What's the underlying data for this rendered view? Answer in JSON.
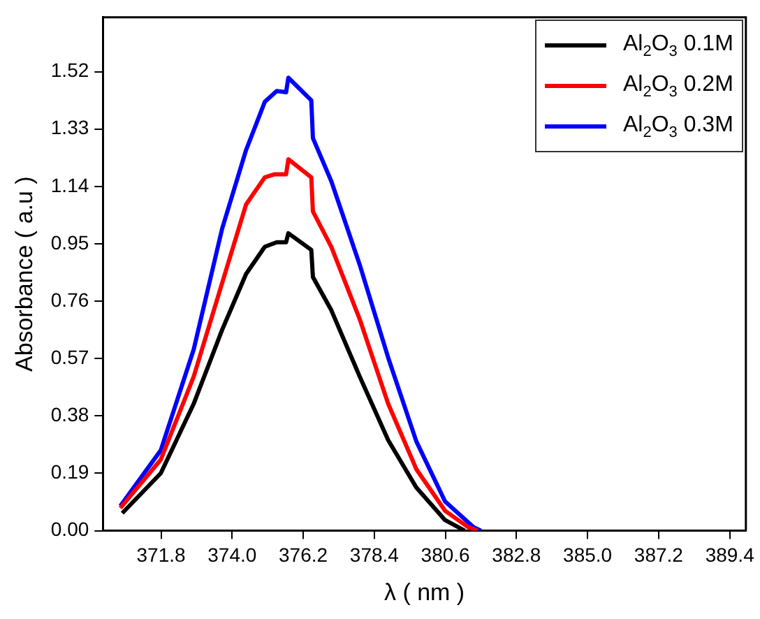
{
  "chart_data": {
    "type": "line",
    "xlabel": "λ ( nm )",
    "ylabel": "Absorbance ( a.u )",
    "xlim": [
      370,
      389.9
    ],
    "ylim": [
      0,
      1.7
    ],
    "xticks": [
      371.8,
      {
        "value": 374,
        "label": "374.0"
      },
      376.2,
      378.4,
      380.6,
      382.8,
      {
        "value": 385,
        "label": "385.0"
      },
      387.2,
      389.4
    ],
    "yticks": [
      {
        "value": 0,
        "label": "0.00"
      },
      0.19,
      0.38,
      0.57,
      0.76,
      0.95,
      1.14,
      1.33,
      1.52
    ],
    "grid": false,
    "legend": "top right",
    "marker": "none",
    "line_style": "solid",
    "series": [
      {
        "name": "Al$_{2}$O$_{3}$ 0.1M",
        "color": "#000000",
        "x": [
          370.6,
          371.79,
          372.81,
          373.69,
          374.43,
          375.01,
          375.38,
          375.67,
          375.74,
          376.45,
          376.5,
          377.07,
          377.95,
          378.83,
          379.7,
          380.59,
          381.2
        ],
        "values": [
          0.058,
          0.19,
          0.42,
          0.665,
          0.85,
          0.94,
          0.955,
          0.955,
          0.985,
          0.93,
          0.84,
          0.73,
          0.51,
          0.3,
          0.143,
          0.035,
          0
        ]
      },
      {
        "name": "Al$_{2}$O$_{3}$ 0.2M",
        "color": "#ff0000",
        "x": [
          370.54,
          371.79,
          372.81,
          373.69,
          374.43,
          375.01,
          375.3,
          375.67,
          375.74,
          376.45,
          376.5,
          377.07,
          377.95,
          378.83,
          379.7,
          380.59,
          381.3,
          381.6
        ],
        "values": [
          0.075,
          0.235,
          0.51,
          0.82,
          1.08,
          1.17,
          1.18,
          1.18,
          1.23,
          1.17,
          1.057,
          0.94,
          0.7,
          0.42,
          0.204,
          0.066,
          0.012,
          0
        ]
      },
      {
        "name": "Al$_{2}$O$_{3}$ 0.3M",
        "color": "#0000ff",
        "x": [
          370.54,
          371.79,
          372.81,
          373.69,
          374.43,
          375.01,
          375.38,
          375.67,
          375.74,
          376.45,
          376.5,
          377.07,
          377.95,
          378.83,
          379.7,
          380.59,
          381.47,
          381.7
        ],
        "values": [
          0.082,
          0.266,
          0.6,
          1.0,
          1.26,
          1.42,
          1.456,
          1.452,
          1.5,
          1.425,
          1.3,
          1.157,
          0.88,
          0.573,
          0.296,
          0.097,
          0.012,
          0
        ]
      }
    ]
  }
}
